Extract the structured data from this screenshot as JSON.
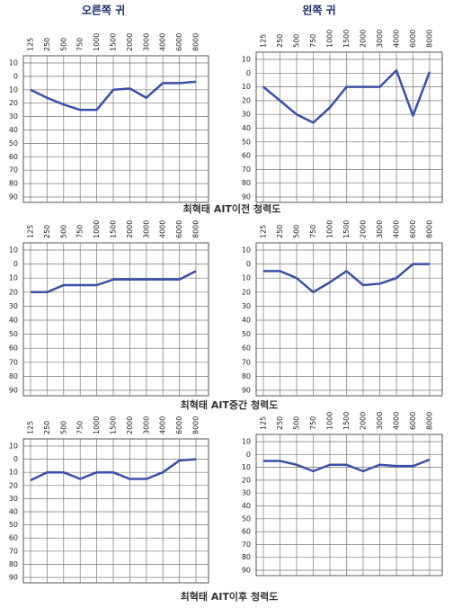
{
  "headers": [
    "오른쪽 귀",
    "왼쪽 귀"
  ],
  "captions": [
    "최혁태 AIT이전 청력도",
    "최혁태 AIT중간 청력도",
    "최혁태 AIT이후 청력도"
  ],
  "chart_data": [
    {
      "type": "line",
      "color": "#3a4fa8",
      "y_inverted": true,
      "grid": true,
      "categories": [
        "125",
        "250",
        "500",
        "750",
        "1000",
        "1500",
        "2000",
        "3000",
        "4000",
        "6000",
        "8000"
      ],
      "values": [
        10,
        16,
        21,
        25,
        25,
        10,
        9,
        16,
        5,
        5,
        4
      ],
      "ylim": [
        -10,
        90
      ],
      "yticks": [
        {
          "value": -10,
          "label": "10"
        },
        0,
        10,
        20,
        30,
        40,
        50,
        60,
        70,
        80,
        90
      ]
    },
    {
      "type": "line",
      "color": "#3a4fa8",
      "y_inverted": true,
      "grid": true,
      "categories": [
        "125",
        "250",
        "500",
        "750",
        "1000",
        "1500",
        "2000",
        "3000",
        "4000",
        "6000",
        "8000"
      ],
      "values": [
        10,
        20,
        30,
        36,
        25,
        10,
        10,
        10,
        -2,
        31,
        -1
      ],
      "ylim": [
        -10,
        90
      ],
      "yticks": [
        {
          "value": -10,
          "label": "10"
        },
        0,
        10,
        20,
        30,
        40,
        50,
        60,
        70,
        80,
        90
      ]
    },
    {
      "type": "line",
      "color": "#3a4fa8",
      "y_inverted": true,
      "grid": true,
      "categories": [
        "125",
        "250",
        "500",
        "750",
        "1000",
        "1500",
        "2000",
        "3000",
        "4000",
        "6000",
        "8000"
      ],
      "values": [
        20,
        20,
        15,
        15,
        15,
        11,
        11,
        11,
        11,
        11,
        5
      ],
      "ylim": [
        -10,
        90
      ],
      "yticks": [
        {
          "value": -10,
          "label": "10"
        },
        0,
        10,
        20,
        30,
        40,
        50,
        60,
        70,
        80,
        90
      ]
    },
    {
      "type": "line",
      "color": "#3a4fa8",
      "y_inverted": true,
      "grid": true,
      "categories": [
        "125",
        "250",
        "500",
        "750",
        "1000",
        "1500",
        "2000",
        "3000",
        "4000",
        "6000",
        "8000"
      ],
      "values": [
        5,
        5,
        10,
        20,
        13,
        5,
        15,
        14,
        10,
        0,
        0
      ],
      "ylim": [
        -10,
        90
      ],
      "yticks": [
        {
          "value": -10,
          "label": "10"
        },
        0,
        10,
        20,
        30,
        40,
        50,
        60,
        70,
        80,
        90
      ]
    },
    {
      "type": "line",
      "color": "#3a4fa8",
      "y_inverted": true,
      "grid": true,
      "categories": [
        "125",
        "250",
        "500",
        "750",
        "1000",
        "1500",
        "2000",
        "3000",
        "4000",
        "6000",
        "8000"
      ],
      "values": [
        16,
        10,
        10,
        15,
        10,
        10,
        15,
        15,
        10,
        1,
        0
      ],
      "ylim": [
        -10,
        90
      ],
      "yticks": [
        {
          "value": -10,
          "label": "10"
        },
        0,
        10,
        20,
        30,
        40,
        50,
        60,
        70,
        80,
        90
      ]
    },
    {
      "type": "line",
      "color": "#3a4fa8",
      "y_inverted": true,
      "grid": true,
      "categories": [
        "125",
        "250",
        "500",
        "750",
        "1000",
        "1500",
        "2000",
        "3000",
        "4000",
        "6000",
        "8000"
      ],
      "values": [
        5,
        5,
        8,
        13,
        8,
        8,
        13,
        8,
        9,
        9,
        4
      ],
      "ylim": [
        -10,
        90
      ],
      "yticks": [
        {
          "value": -10,
          "label": "10"
        },
        0,
        10,
        20,
        30,
        40,
        50,
        60,
        70,
        80,
        90
      ]
    }
  ]
}
